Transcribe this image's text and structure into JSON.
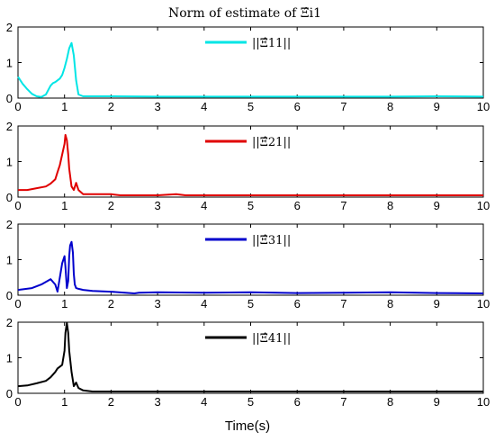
{
  "chart_data": {
    "type": "line",
    "title": "Norm of estimate of Ξ̂i1",
    "xlabel": "Time(s)",
    "xlim": [
      0,
      10
    ],
    "ylim": [
      0,
      2
    ],
    "xticks": [
      "0",
      "1",
      "2",
      "3",
      "4",
      "5",
      "6",
      "7",
      "8",
      "9",
      "10"
    ],
    "yticks": [
      "0",
      "1",
      "2"
    ],
    "legend_placement": "top-center",
    "subplots": [
      {
        "legend": "||Ξ̂11||",
        "color": "#00e5e5",
        "x": [
          0,
          0.1,
          0.2,
          0.3,
          0.4,
          0.5,
          0.6,
          0.7,
          0.75,
          0.8,
          0.85,
          0.9,
          0.95,
          1.0,
          1.05,
          1.1,
          1.15,
          1.2,
          1.25,
          1.3,
          1.4,
          1.5,
          2,
          3,
          4,
          5,
          6,
          7,
          8,
          9,
          10
        ],
        "y": [
          0.6,
          0.4,
          0.25,
          0.12,
          0.05,
          0.03,
          0.1,
          0.35,
          0.42,
          0.45,
          0.5,
          0.55,
          0.65,
          0.85,
          1.1,
          1.4,
          1.55,
          1.2,
          0.5,
          0.1,
          0.05,
          0.05,
          0.05,
          0.04,
          0.04,
          0.04,
          0.04,
          0.04,
          0.04,
          0.05,
          0.04
        ]
      },
      {
        "legend": "||Ξ̂21||",
        "color": "#e00000",
        "x": [
          0,
          0.2,
          0.4,
          0.6,
          0.7,
          0.8,
          0.85,
          0.9,
          0.95,
          1.0,
          1.02,
          1.05,
          1.08,
          1.1,
          1.15,
          1.2,
          1.25,
          1.3,
          1.4,
          1.5,
          2,
          2.2,
          2.4,
          3,
          3.4,
          3.6,
          4,
          5,
          6,
          7,
          8,
          9,
          10
        ],
        "y": [
          0.2,
          0.2,
          0.25,
          0.3,
          0.38,
          0.5,
          0.7,
          0.9,
          1.2,
          1.5,
          1.75,
          1.6,
          1.2,
          0.8,
          0.3,
          0.2,
          0.4,
          0.2,
          0.08,
          0.08,
          0.08,
          0.05,
          0.05,
          0.05,
          0.08,
          0.05,
          0.05,
          0.05,
          0.05,
          0.05,
          0.05,
          0.05,
          0.05
        ]
      },
      {
        "legend": "||Ξ̂31||",
        "color": "#0000cc",
        "x": [
          0,
          0.3,
          0.5,
          0.7,
          0.8,
          0.85,
          0.9,
          0.95,
          1.0,
          1.02,
          1.05,
          1.08,
          1.1,
          1.12,
          1.15,
          1.18,
          1.2,
          1.22,
          1.25,
          1.3,
          1.4,
          1.6,
          2.0,
          2.5,
          2.6,
          3,
          4,
          5,
          6,
          7,
          8,
          9,
          10
        ],
        "y": [
          0.15,
          0.2,
          0.3,
          0.45,
          0.3,
          0.1,
          0.5,
          0.9,
          1.1,
          0.8,
          0.2,
          0.4,
          1.1,
          1.4,
          1.5,
          1.2,
          0.6,
          0.3,
          0.2,
          0.18,
          0.15,
          0.12,
          0.1,
          0.05,
          0.07,
          0.08,
          0.07,
          0.08,
          0.06,
          0.07,
          0.08,
          0.06,
          0.05
        ]
      },
      {
        "legend": "||Ξ̂41||",
        "color": "#000000",
        "x": [
          0,
          0.2,
          0.4,
          0.6,
          0.7,
          0.8,
          0.85,
          0.9,
          0.95,
          1.0,
          1.02,
          1.05,
          1.08,
          1.1,
          1.15,
          1.2,
          1.25,
          1.3,
          1.4,
          1.6,
          2,
          3,
          4,
          5,
          6,
          7,
          8,
          9,
          10
        ],
        "y": [
          0.2,
          0.22,
          0.28,
          0.35,
          0.45,
          0.6,
          0.7,
          0.75,
          0.8,
          1.2,
          1.7,
          1.98,
          1.7,
          1.2,
          0.6,
          0.2,
          0.3,
          0.15,
          0.08,
          0.05,
          0.05,
          0.05,
          0.05,
          0.05,
          0.05,
          0.05,
          0.05,
          0.05,
          0.05
        ]
      }
    ]
  }
}
